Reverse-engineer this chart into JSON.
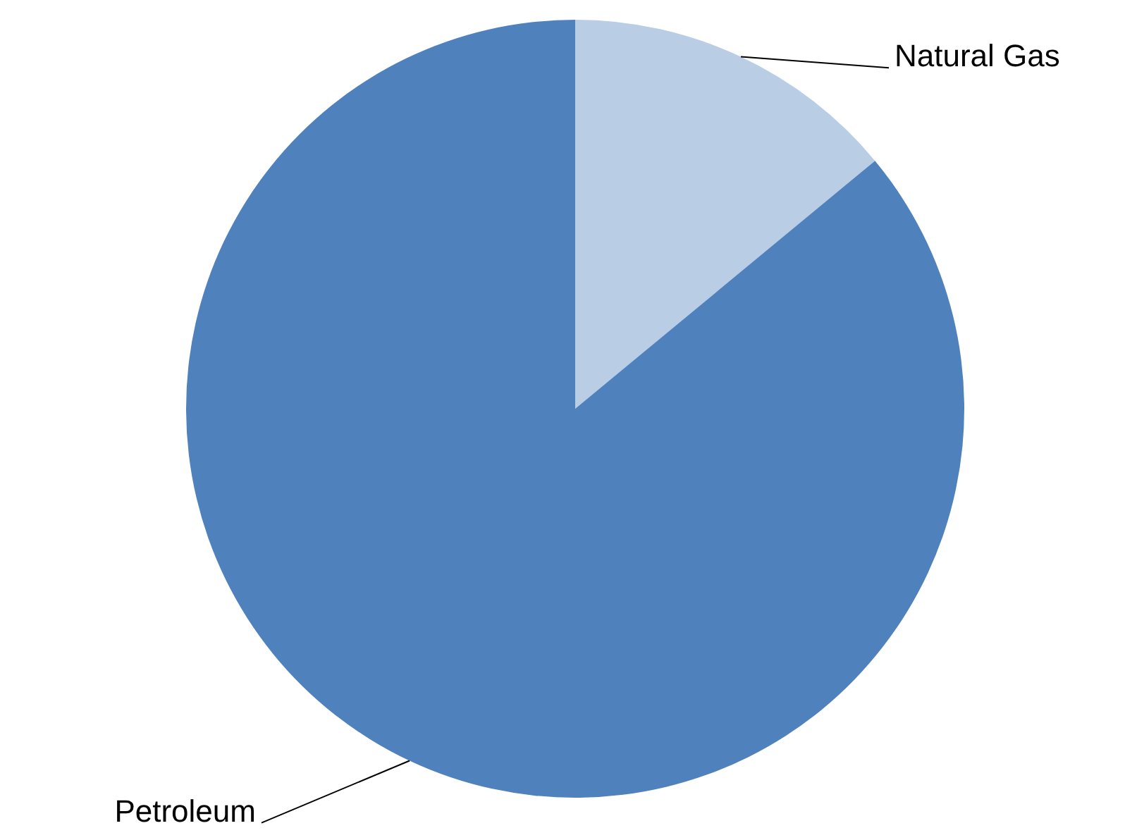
{
  "chart_data": {
    "type": "pie",
    "categories": [
      "Natural Gas",
      "Petroleum"
    ],
    "values": [
      14,
      86
    ],
    "colors": [
      "#b9cde5",
      "#4f81bd"
    ]
  }
}
